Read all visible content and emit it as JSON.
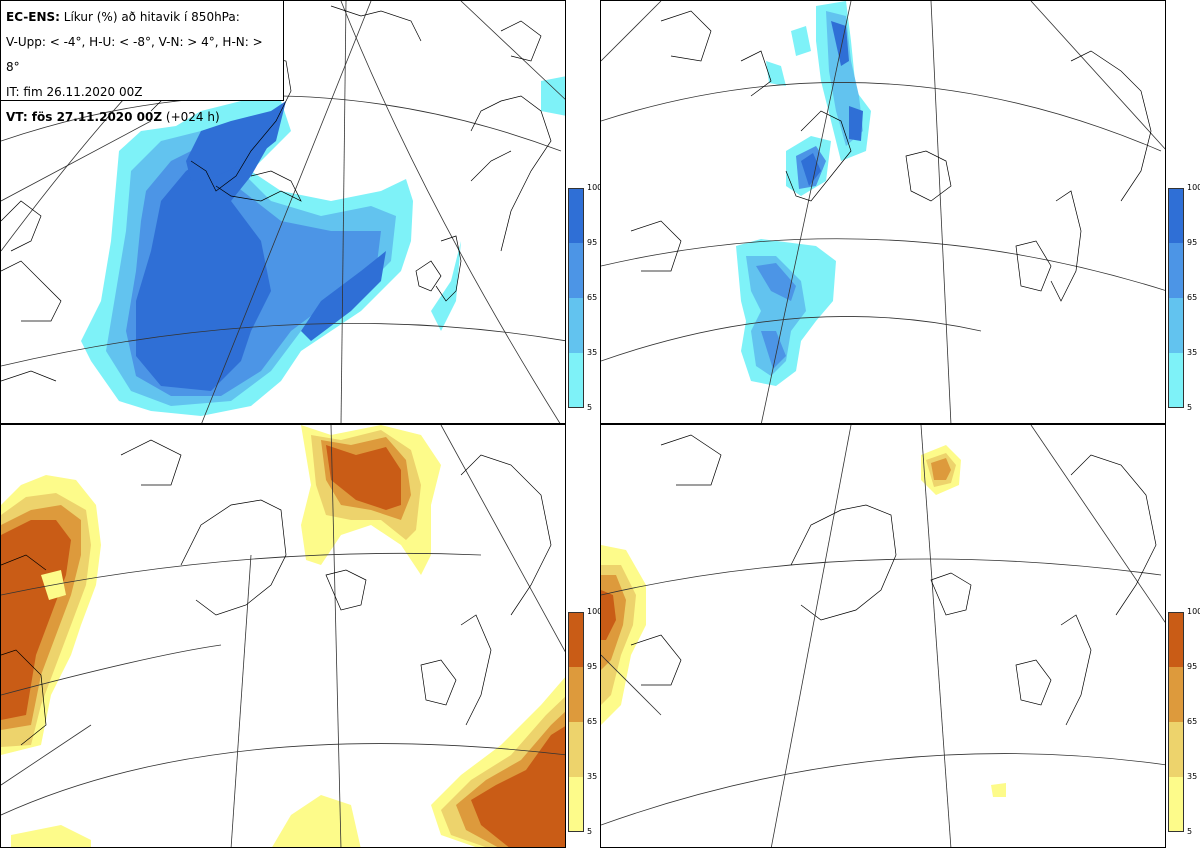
{
  "info": {
    "line1_bold": "EC-ENS:",
    "line1_rest": "Líkur (%) að hitavik í 850hPa:",
    "line2": "V-Upp: < -4°, H-U: < -8°, V-N: > 4°, H-N: > 8°",
    "line3": "IT: fim 26.11.2020 00Z",
    "line4_bold": "VT: fös 27.11.2020 00Z",
    "line4_rest": "(+024 h)"
  },
  "panels": [
    {
      "name": "V-Upp",
      "variable": "prob-anomaly-below-minus-4",
      "colorscale": "blue"
    },
    {
      "name": "H-U",
      "variable": "prob-anomaly-below-minus-8",
      "colorscale": "blue"
    },
    {
      "name": "V-N",
      "variable": "prob-anomaly-above-plus-4",
      "colorscale": "orange"
    },
    {
      "name": "H-N",
      "variable": "prob-anomaly-above-plus-8",
      "colorscale": "orange"
    }
  ],
  "colorbar": {
    "ticks": [
      "100",
      "95",
      "65",
      "35",
      "5"
    ],
    "blue_colors": [
      "#2f6fd6",
      "#4c95e6",
      "#62c3ef",
      "#7ef2f8"
    ],
    "orange_colors": [
      "#c95c16",
      "#dd9a3c",
      "#edd36c",
      "#fdfb8a"
    ]
  }
}
